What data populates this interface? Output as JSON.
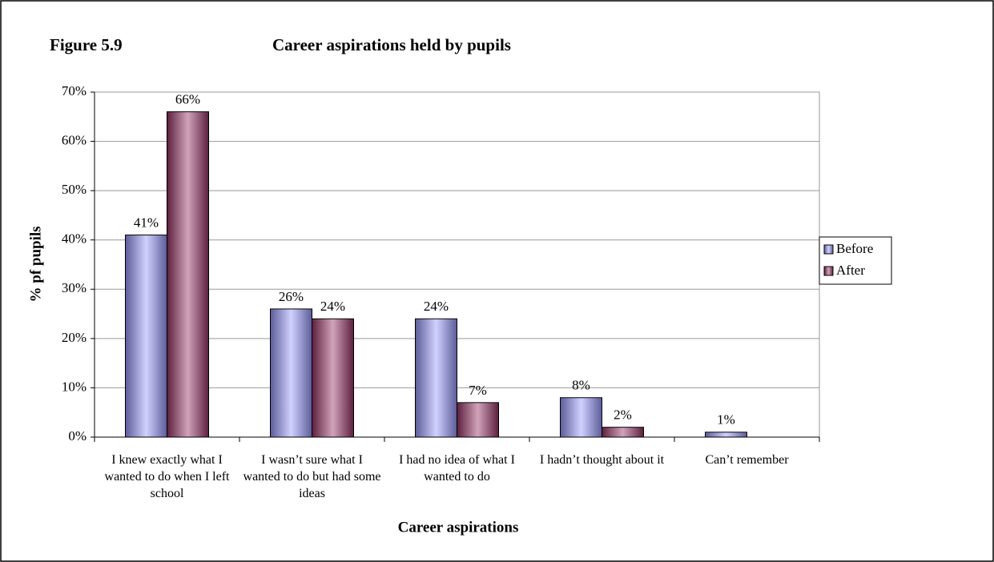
{
  "chart_data": {
    "type": "bar",
    "figure_label": "Figure 5.9",
    "title": "Career aspirations held by pupils",
    "x_label": "Career aspirations",
    "y_label": "% pf pupils",
    "categories": [
      "I knew exactly what I wanted to do when I left school",
      "I wasn’t sure what I wanted to do but had some ideas",
      "I had no idea of what I wanted to do",
      "I hadn’t thought about it",
      "Can’t remember"
    ],
    "series": [
      {
        "name": "Before",
        "color": "#9999ff",
        "values": [
          41,
          26,
          24,
          8,
          1
        ],
        "value_labels": [
          "41%",
          "26%",
          "24%",
          "8%",
          "1%"
        ]
      },
      {
        "name": "After",
        "color": "#993366",
        "values": [
          66,
          24,
          7,
          2,
          null
        ],
        "value_labels": [
          "66%",
          "24%",
          "7%",
          "2%",
          null
        ]
      }
    ],
    "ylim": [
      0,
      70
    ],
    "yticks": [
      {
        "value": 0,
        "label": "0%"
      },
      {
        "value": 10,
        "label": "10%"
      },
      {
        "value": 20,
        "label": "20%"
      },
      {
        "value": 30,
        "label": "30%"
      },
      {
        "value": 40,
        "label": "40%"
      },
      {
        "value": 50,
        "label": "50%"
      },
      {
        "value": 60,
        "label": "60%"
      },
      {
        "value": 70,
        "label": "70%"
      }
    ],
    "grid": true,
    "legend": "right"
  }
}
